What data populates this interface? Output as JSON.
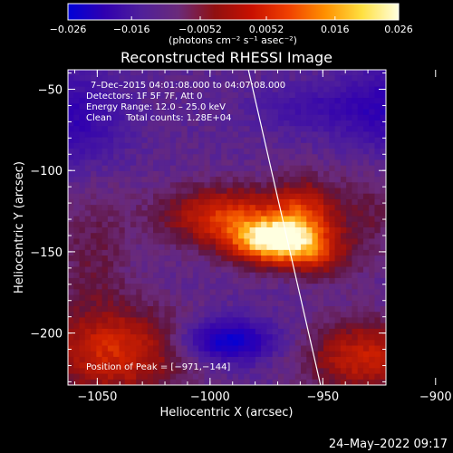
{
  "colorbar": {
    "ticks": [
      "-0.026",
      "-0.016",
      "-0.0052",
      "0.0052",
      "0.016",
      "0.026"
    ],
    "tick_values": [
      -0.026,
      -0.016,
      -0.0052,
      0.0052,
      0.016,
      0.026
    ],
    "min": -0.026,
    "max": 0.026,
    "unit_label": "(photons cm⁻² s⁻¹ asec⁻²)",
    "colors": [
      "#0000d8",
      "#3000b0",
      "#50209a",
      "#6a2a7a",
      "#901010",
      "#c81000",
      "#f04000",
      "#ff9000",
      "#ffe040",
      "#ffffe0"
    ]
  },
  "chart_data": {
    "type": "heatmap",
    "title": "Reconstructed RHESSI Image",
    "xlabel": "Heliocentric X (arcsec)",
    "ylabel": "Heliocentric Y (arcsec)",
    "xlim": [
      -1063,
      -922
    ],
    "ylim": [
      -232,
      -38
    ],
    "x_ticks": [
      -1050,
      -1000,
      -950,
      -900
    ],
    "y_ticks": [
      -50,
      -100,
      -150,
      -200
    ],
    "x_tick_labels": [
      "−1050",
      "−1000",
      "−950",
      "−900"
    ],
    "y_tick_labels": [
      "−50",
      "−100",
      "−150",
      "−200"
    ],
    "annotations": {
      "time_range": "7–Dec–2015 04:01:08.000 to 04:07:08.000",
      "detectors": "Detectors: 1F 5F 7F, Att 0",
      "energy": "Energy Range: 12.0 – 25.0 keV",
      "clean": "Clean     Total counts: 1.28E+04",
      "peak": "Position of Peak = [−971,−144]"
    },
    "peak_position": [
      -971,
      -144
    ],
    "limb_line": [
      [
        -983,
        -38
      ],
      [
        -951,
        -232
      ]
    ],
    "blobs": [
      {
        "x": -971,
        "y": -144,
        "sx": 14,
        "sy": 10,
        "amp": 0.03
      },
      {
        "x": -993,
        "y": -128,
        "sx": 20,
        "sy": 13,
        "amp": 0.018
      },
      {
        "x": -958,
        "y": -124,
        "sx": 10,
        "sy": 14,
        "amp": 0.014
      },
      {
        "x": -952,
        "y": -153,
        "sx": 9,
        "sy": 10,
        "amp": 0.01
      },
      {
        "x": -1042,
        "y": -212,
        "sx": 22,
        "sy": 20,
        "amp": 0.017
      },
      {
        "x": -1052,
        "y": -150,
        "sx": 12,
        "sy": 30,
        "amp": 0.006
      },
      {
        "x": -932,
        "y": -215,
        "sx": 18,
        "sy": 16,
        "amp": 0.016
      },
      {
        "x": -930,
        "y": -130,
        "sx": 12,
        "sy": 24,
        "amp": 0.006
      },
      {
        "x": -955,
        "y": -62,
        "sx": 18,
        "sy": 10,
        "amp": -0.006
      },
      {
        "x": -992,
        "y": -205,
        "sx": 14,
        "sy": 9,
        "amp": -0.018
      },
      {
        "x": -1060,
        "y": -68,
        "sx": 15,
        "sy": 20,
        "amp": -0.01
      },
      {
        "x": -915,
        "y": -62,
        "sx": 18,
        "sy": 20,
        "amp": -0.012
      },
      {
        "x": -905,
        "y": -160,
        "sx": 10,
        "sy": 15,
        "amp": -0.008
      }
    ],
    "background": -0.0068
  },
  "footer": {
    "timestamp": "24–May–2022 09:17"
  }
}
